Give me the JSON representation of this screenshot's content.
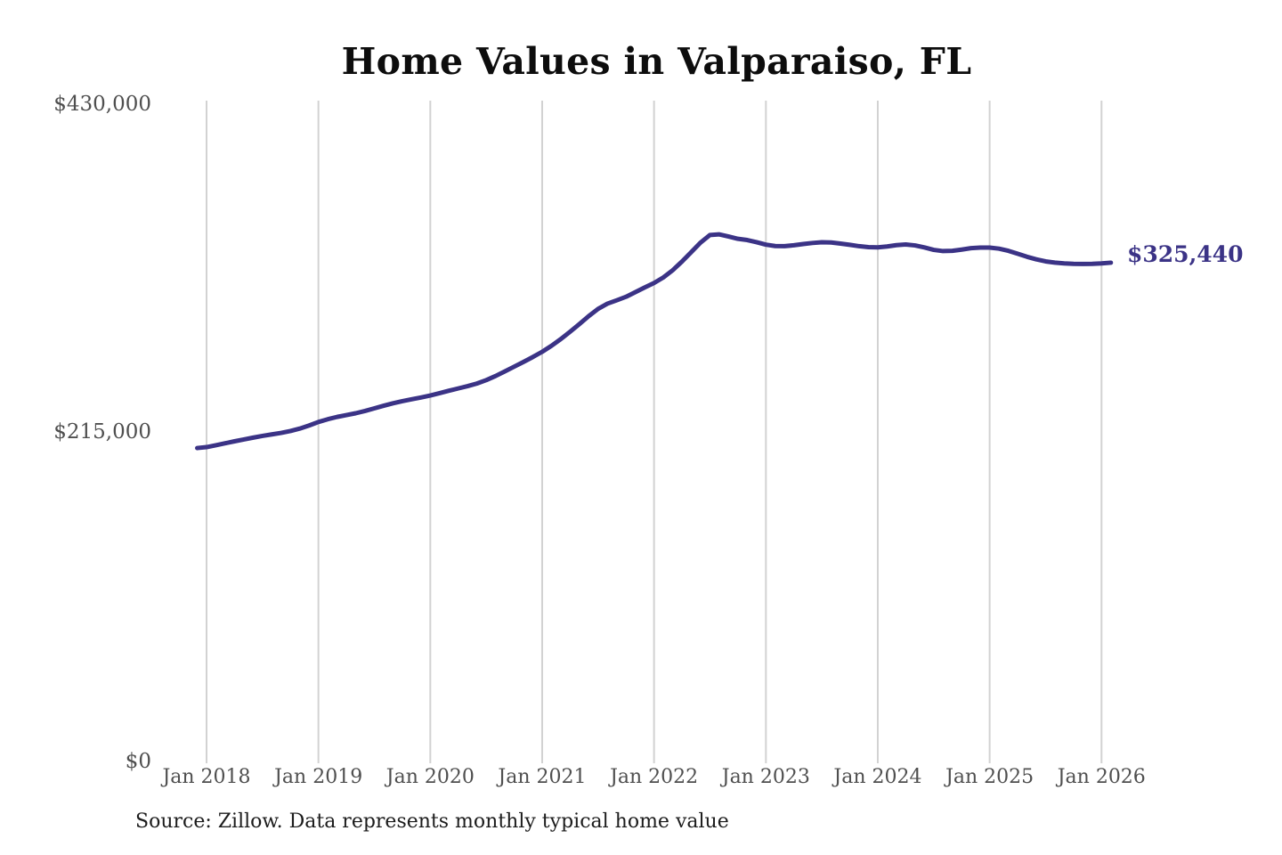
{
  "title": "Home Values in Valparaiso, FL",
  "annotation": {
    "label": "$325,440"
  },
  "source": "Source: Zillow. Data represents monthly typical home value",
  "colors": {
    "line": "#3b3386",
    "annotation": "#3b3386",
    "grid": "#d2d2d2",
    "tick_label": "#4f4f4f",
    "title": "#0d0d0d",
    "source": "#1c1c1c",
    "background": "#ffffff"
  },
  "y_axis": {
    "ticks": [
      {
        "label": "$430,000",
        "value": 430000
      },
      {
        "label": "$215,000",
        "value": 215000
      },
      {
        "label": "$0",
        "value": 0
      }
    ]
  },
  "x_axis": {
    "ticks": [
      "Jan 2018",
      "Jan 2019",
      "Jan 2020",
      "Jan 2021",
      "Jan 2022",
      "Jan 2023",
      "Jan 2024",
      "Jan 2025",
      "Jan 2026"
    ]
  },
  "chart_data": {
    "type": "line",
    "title": "Home Values in Valparaiso, FL",
    "xlabel": "",
    "ylabel": "",
    "ylim": [
      0,
      430000
    ],
    "y_tick_values": [
      0,
      215000,
      430000
    ],
    "x_tick_labels": [
      "Jan 2018",
      "Jan 2019",
      "Jan 2020",
      "Jan 2021",
      "Jan 2022",
      "Jan 2023",
      "Jan 2024",
      "Jan 2025",
      "Jan 2026"
    ],
    "grid": "vertical-only",
    "legend": "none",
    "x_start_month": "2017-12",
    "x_end_month": "2026-02",
    "end_label": "$325,440",
    "end_value": 325440,
    "series": [
      {
        "name": "Monthly typical home value",
        "monthly_values": [
          204500,
          205100,
          206300,
          207600,
          208900,
          210100,
          211300,
          212400,
          213400,
          214400,
          215600,
          217200,
          219200,
          221500,
          223300,
          224800,
          226000,
          227200,
          228700,
          230400,
          232100,
          233700,
          235100,
          236300,
          237500,
          238800,
          240300,
          241900,
          243400,
          244900,
          246600,
          248800,
          251500,
          254500,
          257600,
          260700,
          263900,
          267300,
          271200,
          275600,
          280400,
          285400,
          290600,
          295300,
          298700,
          300900,
          303200,
          306200,
          309300,
          312200,
          315800,
          320500,
          326200,
          332400,
          338600,
          343500,
          343900,
          342500,
          341000,
          340200,
          338800,
          337200,
          336300,
          336200,
          336800,
          337600,
          338300,
          338800,
          338600,
          337900,
          337100,
          336200,
          335600,
          335400,
          336000,
          336900,
          337300,
          336700,
          335400,
          333800,
          333000,
          333200,
          334000,
          334900,
          335300,
          335300,
          334600,
          333200,
          331300,
          329300,
          327600,
          326300,
          325500,
          325000,
          324700,
          324600,
          324700,
          325000,
          325440
        ]
      }
    ]
  }
}
